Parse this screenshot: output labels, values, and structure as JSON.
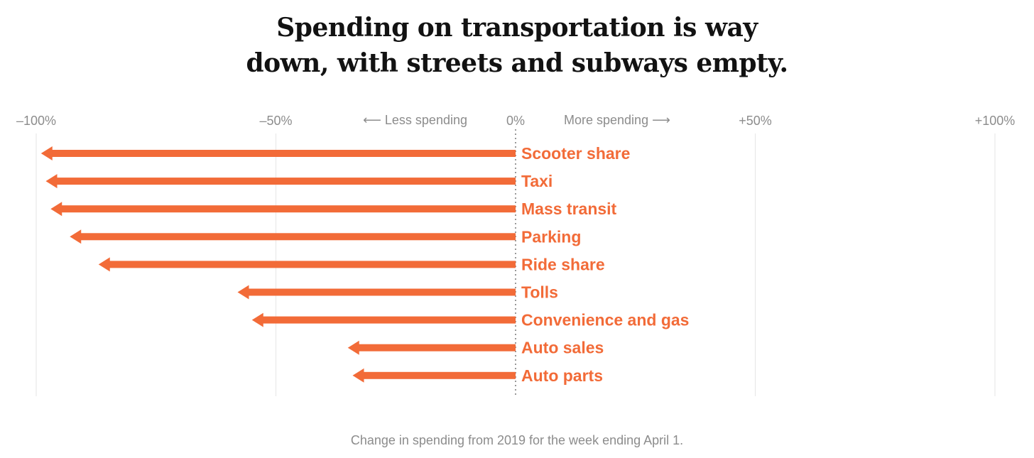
{
  "chart_data": {
    "type": "bar",
    "title_lines": [
      "Spending on transportation is way",
      "down, with streets and subways empty."
    ],
    "categories": [
      "Scooter share",
      "Taxi",
      "Mass transit",
      "Parking",
      "Ride share",
      "Tolls",
      "Convenience and gas",
      "Auto sales",
      "Auto parts"
    ],
    "values": [
      -99,
      -98,
      -97,
      -93,
      -87,
      -58,
      -55,
      -35,
      -34
    ],
    "unit": "%",
    "xlim": [
      -100,
      100
    ],
    "ticks": [
      {
        "value": -100,
        "label": "–100%"
      },
      {
        "value": -50,
        "label": "–50%"
      },
      {
        "value": 0,
        "label": "0%"
      },
      {
        "value": 50,
        "label": "+50%"
      },
      {
        "value": 100,
        "label": "+100%"
      }
    ],
    "direction_labels": {
      "negative": "⟵ Less spending",
      "positive": "More spending ⟶"
    },
    "note": "Change in spending from 2019 for the week ending April 1.",
    "grid": true,
    "zero_line": "dotted",
    "colors": {
      "bar": "#f26b38",
      "label": "#f26b38",
      "grid": "#e6e6e6",
      "axis_text": "#8c8c8c",
      "title": "#121212"
    }
  }
}
